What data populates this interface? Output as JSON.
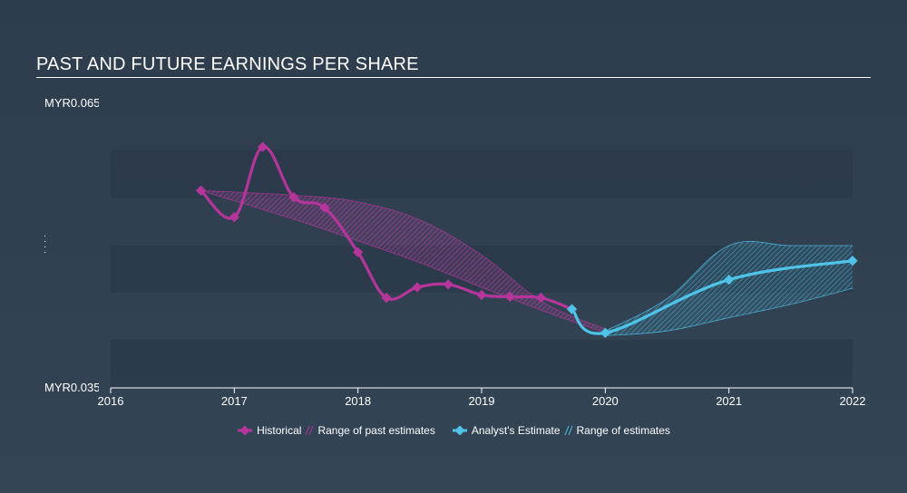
{
  "chart_data": {
    "type": "line",
    "title": "PAST AND FUTURE EARNINGS PER SHARE",
    "y_tick_labels": [
      "MYR0.065",
      "MYR0.035"
    ],
    "ylim": [
      0.035,
      0.065
    ],
    "xlim": [
      2016,
      2022.0
    ],
    "x_tick_labels": [
      "2016",
      "2017",
      "2018",
      "2019",
      "2020",
      "2021",
      "2022"
    ],
    "x_ticks": [
      2016,
      2017,
      2018,
      2019,
      2020,
      2021,
      2022
    ],
    "series": [
      {
        "name": "Historical",
        "color": "#b5359b",
        "x": [
          2016.73,
          2017.0,
          2017.23,
          2017.48,
          2017.73,
          2018.0,
          2018.23,
          2018.48,
          2018.73,
          2019.0,
          2019.23,
          2019.48,
          2019.73
        ],
        "y": [
          0.0558,
          0.053,
          0.0604,
          0.0551,
          0.054,
          0.0493,
          0.0445,
          0.0456,
          0.0459,
          0.0448,
          0.0446,
          0.0445,
          0.0433
        ]
      },
      {
        "name": "Analyst's Estimate",
        "color": "#4fc3e8",
        "x": [
          2019.73,
          2020.0,
          2021.0,
          2022.0
        ],
        "y": [
          0.0433,
          0.0408,
          0.0464,
          0.0484
        ]
      }
    ],
    "past_estimate_range": {
      "name": "Range of past estimates",
      "x": [
        2016.73,
        2017.5,
        2018.0,
        2018.5,
        2019.0,
        2019.5,
        2020.0
      ],
      "upper": [
        0.0558,
        0.0553,
        0.0546,
        0.0527,
        0.049,
        0.044,
        0.0412
      ],
      "lower": [
        0.0558,
        0.0527,
        0.0505,
        0.0482,
        0.0456,
        0.0431,
        0.0408
      ]
    },
    "estimate_range": {
      "name": "Range of estimates",
      "x": [
        2020.0,
        2020.5,
        2021.0,
        2021.5,
        2022.0
      ],
      "upper": [
        0.041,
        0.0444,
        0.05,
        0.05,
        0.05
      ],
      "lower": [
        0.0405,
        0.041,
        0.0424,
        0.0438,
        0.0455
      ]
    },
    "legend": {
      "position": "bottom-center",
      "items": [
        "Historical",
        "Range of past estimates",
        "Analyst's Estimate",
        "Range of estimates"
      ]
    },
    "grid": true
  },
  "colors": {
    "historical": "#b5359b",
    "estimate": "#4fc3e8",
    "past_range_fill": "#b5359b",
    "estimate_range_fill": "#4fc3e8"
  }
}
